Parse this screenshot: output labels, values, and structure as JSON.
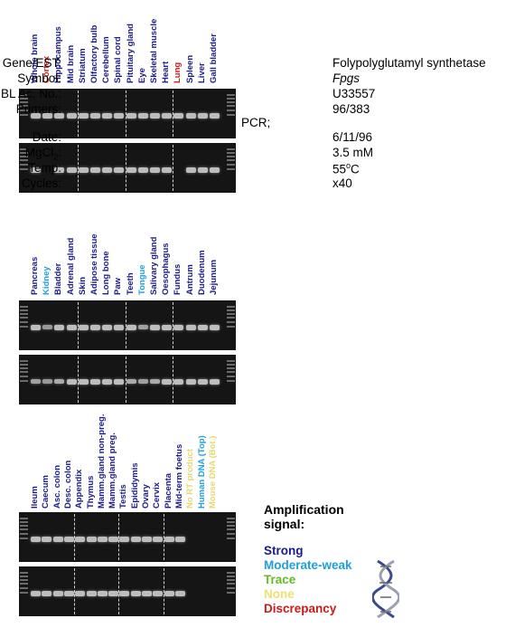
{
  "panels": [
    {
      "tissues": [
        {
          "name": "Whole brain",
          "color": "#1a1a8c"
        },
        {
          "name": "Cortex",
          "color": "#cc1a1a"
        },
        {
          "name": "Hippocampus",
          "color": "#1a1a8c"
        },
        {
          "name": "Mid brain",
          "color": "#1a1a8c"
        },
        {
          "name": "Striatum",
          "color": "#1a1a8c"
        },
        {
          "name": "Olfactory bulb",
          "color": "#1a1a8c"
        },
        {
          "name": "Cerebellum",
          "color": "#1a1a8c"
        },
        {
          "name": "Spinal cord",
          "color": "#1a1a8c"
        },
        {
          "name": "Pituitary gland",
          "color": "#1a1a8c"
        },
        {
          "name": "Eye",
          "color": "#1a1a8c"
        },
        {
          "name": "Skeletal muscle",
          "color": "#1a1a8c"
        },
        {
          "name": "Heart",
          "color": "#1a1a8c"
        },
        {
          "name": "Lung",
          "color": "#cc1a1a"
        },
        {
          "name": "Spleen",
          "color": "#1a1a8c"
        },
        {
          "name": "Liver",
          "color": "#1a1a8c"
        },
        {
          "name": "Gall bladder",
          "color": "#1a1a8c"
        }
      ],
      "gels": [
        {
          "bands": [
            1,
            1,
            1,
            1,
            1,
            1,
            1,
            1,
            1,
            1,
            1,
            1,
            1,
            1,
            1,
            1
          ]
        },
        {
          "bands": [
            1,
            0,
            1,
            1,
            1,
            1,
            1,
            1,
            1,
            1,
            1,
            1,
            0,
            1,
            1,
            1
          ]
        }
      ]
    },
    {
      "tissues": [
        {
          "name": "Pancreas",
          "color": "#1a1a8c"
        },
        {
          "name": "Kidney",
          "color": "#1ea0d8"
        },
        {
          "name": "Bladder",
          "color": "#1a1a8c"
        },
        {
          "name": "Adrenal gland",
          "color": "#1a1a8c"
        },
        {
          "name": "Skin",
          "color": "#1a1a8c"
        },
        {
          "name": "Adipose tissue",
          "color": "#1a1a8c"
        },
        {
          "name": "Long bone",
          "color": "#1a1a8c"
        },
        {
          "name": "Paw",
          "color": "#1a1a8c"
        },
        {
          "name": "Teeth",
          "color": "#1a1a8c"
        },
        {
          "name": "Tongue",
          "color": "#1ea0d8"
        },
        {
          "name": "Salivary gland",
          "color": "#1a1a8c"
        },
        {
          "name": "Oesophagus",
          "color": "#1a1a8c"
        },
        {
          "name": "Fundus",
          "color": "#1a1a8c"
        },
        {
          "name": "Antrum",
          "color": "#1a1a8c"
        },
        {
          "name": "Duodenum",
          "color": "#1a1a8c"
        },
        {
          "name": "Jejunum",
          "color": "#1a1a8c"
        }
      ],
      "gels": [
        {
          "bands": [
            1,
            0.6,
            1,
            1,
            1,
            1,
            1,
            1,
            1,
            0.7,
            1,
            1,
            1,
            1,
            1,
            1
          ]
        },
        {
          "bands": [
            0.7,
            0.6,
            0.8,
            1,
            1,
            1,
            1,
            1,
            0.8,
            0.7,
            0.8,
            1,
            1,
            1,
            1,
            1
          ]
        }
      ]
    },
    {
      "tissues": [
        {
          "name": "Ileum",
          "color": "#1a1a8c"
        },
        {
          "name": "Caecum",
          "color": "#1a1a8c"
        },
        {
          "name": "Asc. colon",
          "color": "#1a1a8c"
        },
        {
          "name": "Desc. colon",
          "color": "#1a1a8c"
        },
        {
          "name": "Appendix",
          "color": "#1a1a8c"
        },
        {
          "name": "Thymus",
          "color": "#1a1a8c"
        },
        {
          "name": "Mamm.gland non-preg.",
          "color": "#1a1a8c"
        },
        {
          "name": "Mamm.gland preg.",
          "color": "#1a1a8c"
        },
        {
          "name": "Testis",
          "color": "#1a1a8c"
        },
        {
          "name": "Epididymis",
          "color": "#1a1a8c"
        },
        {
          "name": "Ovary",
          "color": "#1a1a8c"
        },
        {
          "name": "Cervix",
          "color": "#1a1a8c"
        },
        {
          "name": "Placenta",
          "color": "#1a1a8c"
        },
        {
          "name": "Mid-term foetus",
          "color": "#1a1a8c"
        },
        {
          "name": "No RT product",
          "color": "#e8d870"
        },
        {
          "name": "Human DNA (Top)",
          "color": "#1ea0d8"
        },
        {
          "name": "Mouse DNA (Bot.)",
          "color": "#e8d870"
        }
      ],
      "gels": [
        {
          "bands": [
            1,
            1,
            1,
            1,
            1,
            1,
            1,
            1,
            1,
            1,
            1,
            1,
            1,
            1,
            0,
            0,
            0
          ]
        },
        {
          "bands": [
            1,
            1,
            1,
            1,
            1,
            1,
            1,
            1,
            1,
            1,
            1,
            1,
            1,
            1,
            0,
            0,
            0
          ]
        }
      ]
    }
  ],
  "info": {
    "gene_key": "Gene/EST:",
    "gene_val": "Folypolyglutamyl synthetase",
    "symbol_key": "Symbol:",
    "symbol_val": "Fpgs",
    "embl_key": "EMBL Ac. No.:",
    "embl_val": "U33557",
    "primers_key": "Primers:",
    "primers_val": "96/383",
    "pcr_label": "PCR;",
    "date_key": "Date:",
    "date_val": "6/11/96",
    "mgcl_key": "MgCl",
    "mgcl_sub": "2",
    "mgcl_colon": ":",
    "mgcl_val": "3.5 mM",
    "temp_key": "Temp:",
    "temp_num": "55",
    "temp_sup": "o",
    "temp_unit": "C",
    "cycles_key": "Cycles:",
    "cycles_val": "x40"
  },
  "legend": {
    "title_line1": "Amplification",
    "title_line2": "signal:",
    "items": [
      {
        "label": "Strong",
        "color": "#1a1a8c"
      },
      {
        "label": "Moderate-weak",
        "color": "#1ea0d8"
      },
      {
        "label": "Trace",
        "color": "#66bb22"
      },
      {
        "label": "None",
        "color": "#f0e070"
      },
      {
        "label": "Discrepancy",
        "color": "#cc1a1a"
      }
    ]
  }
}
